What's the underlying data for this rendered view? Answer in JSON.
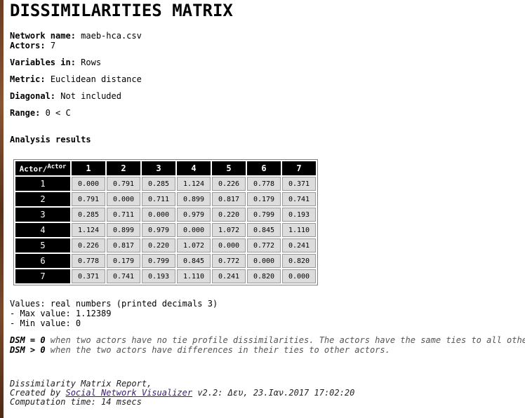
{
  "title": "DISSIMILARITIES MATRIX",
  "info": {
    "network_label": "Network name:",
    "network_value": "maeb-hca.csv",
    "actors_label": "Actors:",
    "actors_value": "7",
    "variables_label": "Variables in:",
    "variables_value": "Rows",
    "metric_label": "Metric:",
    "metric_value": "Euclidean distance",
    "diagonal_label": "Diagonal:",
    "diagonal_value": "Not included",
    "range_label": "Range:",
    "range_value": "0 < C"
  },
  "analysis_heading": "Analysis results",
  "matrix": {
    "corner_main": "Actor/",
    "corner_sup": "Actor",
    "columns": [
      "1",
      "2",
      "3",
      "4",
      "5",
      "6",
      "7"
    ],
    "rows": [
      {
        "label": "1",
        "values": [
          "0.000",
          "0.791",
          "0.285",
          "1.124",
          "0.226",
          "0.778",
          "0.371"
        ]
      },
      {
        "label": "2",
        "values": [
          "0.791",
          "0.000",
          "0.711",
          "0.899",
          "0.817",
          "0.179",
          "0.741"
        ]
      },
      {
        "label": "3",
        "values": [
          "0.285",
          "0.711",
          "0.000",
          "0.979",
          "0.220",
          "0.799",
          "0.193"
        ]
      },
      {
        "label": "4",
        "values": [
          "1.124",
          "0.899",
          "0.979",
          "0.000",
          "1.072",
          "0.845",
          "1.110"
        ]
      },
      {
        "label": "5",
        "values": [
          "0.226",
          "0.817",
          "0.220",
          "1.072",
          "0.000",
          "0.772",
          "0.241"
        ]
      },
      {
        "label": "6",
        "values": [
          "0.778",
          "0.179",
          "0.799",
          "0.845",
          "0.772",
          "0.000",
          "0.820"
        ]
      },
      {
        "label": "7",
        "values": [
          "0.371",
          "0.741",
          "0.193",
          "1.110",
          "0.241",
          "0.820",
          "0.000"
        ]
      }
    ]
  },
  "values_info": {
    "line1": "Values: real numbers (printed decimals 3)",
    "line2": "- Max value: 1.12389",
    "line3": "- Min value: 0"
  },
  "legend": {
    "dsm0_key": "DSM = 0",
    "dsm0_text": " when two actors have no tie profile dissimilarities. The actors have the same ties to all others.",
    "dsm1_key": "DSM > 0",
    "dsm1_text": " when the two actors have differences in their ties to other actors."
  },
  "footer": {
    "line1": "Dissimilarity Matrix Report,",
    "created_prefix": "Created by ",
    "link_text": "Social Network Visualizer",
    "created_suffix": " v2.2: Δευ, 23.Ιαν.2017 17:02:20",
    "line3": "Computation time: 14 msecs"
  }
}
